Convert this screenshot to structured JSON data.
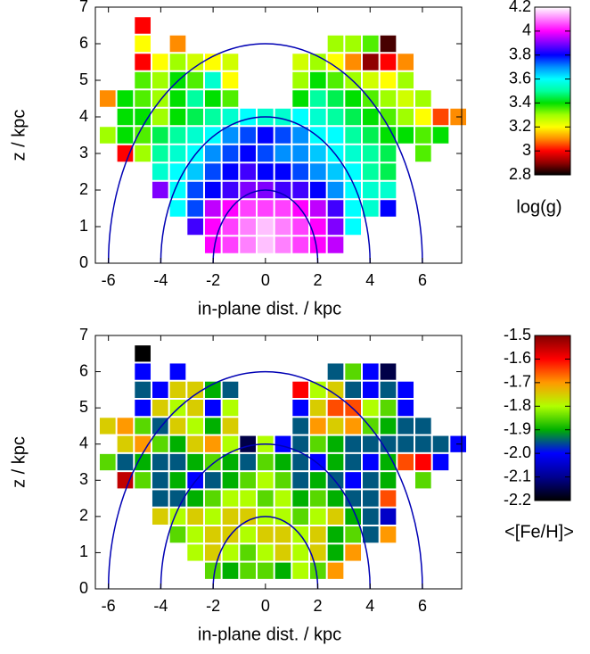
{
  "chart_data": [
    {
      "type": "heatmap",
      "xlabel": "in-plane dist. / kpc",
      "ylabel": "z / kpc",
      "x": [
        -6.03,
        -5.36,
        -4.69,
        -4.02,
        -3.35,
        -2.68,
        -2.01,
        -1.34,
        -0.67,
        0,
        0.67,
        1.34,
        2.01,
        2.68,
        3.35,
        4.02,
        4.69,
        5.36,
        6.03,
        6.7,
        7.37
      ],
      "y": [
        0.5,
        1,
        1.5,
        2,
        2.5,
        3,
        3.5,
        4,
        4.5,
        5,
        5.5,
        6,
        6.5
      ],
      "values": [
        [
          null,
          null,
          null,
          null,
          null,
          null,
          4.0,
          4.05,
          4.1,
          4.15,
          4.1,
          4.05,
          4.0,
          3.95,
          null,
          null,
          null,
          null,
          null,
          null,
          null
        ],
        [
          null,
          null,
          null,
          null,
          null,
          3.85,
          4.0,
          4.05,
          4.1,
          4.15,
          4.1,
          4.05,
          4.0,
          3.9,
          3.6,
          null,
          null,
          null,
          null,
          null,
          null
        ],
        [
          null,
          null,
          null,
          null,
          3.6,
          3.75,
          3.95,
          4.0,
          4.05,
          4.05,
          4.05,
          4.0,
          3.95,
          3.85,
          3.6,
          3.55,
          3.8,
          null,
          null,
          null,
          null
        ],
        [
          null,
          null,
          null,
          3.9,
          3.6,
          3.75,
          3.8,
          3.85,
          3.9,
          3.9,
          3.85,
          3.85,
          3.8,
          3.7,
          3.6,
          3.55,
          3.55,
          null,
          null,
          null,
          null
        ],
        [
          null,
          null,
          null,
          3.55,
          3.6,
          3.65,
          3.75,
          3.8,
          3.85,
          3.8,
          3.8,
          3.75,
          3.7,
          3.65,
          3.6,
          3.5,
          3.45,
          null,
          null,
          null,
          null
        ],
        [
          null,
          3.0,
          3.3,
          3.5,
          3.55,
          3.6,
          3.7,
          3.75,
          3.8,
          3.75,
          3.7,
          3.7,
          3.65,
          3.6,
          3.55,
          3.5,
          3.45,
          null,
          3.35,
          null,
          null
        ],
        [
          3.3,
          3.4,
          3.35,
          3.45,
          3.5,
          3.55,
          3.6,
          3.7,
          3.75,
          3.8,
          3.75,
          3.7,
          3.6,
          3.6,
          3.5,
          3.45,
          3.4,
          3.4,
          3.35,
          3.4,
          null
        ],
        [
          null,
          3.4,
          3.4,
          3.3,
          3.4,
          3.45,
          3.5,
          3.55,
          3.6,
          3.55,
          3.55,
          3.6,
          3.55,
          3.5,
          3.45,
          3.4,
          3.35,
          3.3,
          3.2,
          3.05,
          3.1
        ],
        [
          3.1,
          3.4,
          3.35,
          3.3,
          3.4,
          3.5,
          3.4,
          3.35,
          null,
          null,
          null,
          3.4,
          3.5,
          3.45,
          3.4,
          3.35,
          3.3,
          3.25,
          3.3,
          null,
          null
        ],
        [
          null,
          null,
          3.35,
          3.3,
          3.4,
          3.35,
          3.55,
          3.2,
          null,
          null,
          null,
          3.3,
          3.4,
          3.35,
          3.3,
          3.25,
          3.2,
          3.3,
          null,
          null,
          null
        ],
        [
          null,
          null,
          3.0,
          3.2,
          3.3,
          3.25,
          3.2,
          3.25,
          null,
          null,
          null,
          3.25,
          3.3,
          3.2,
          3.1,
          2.9,
          3.0,
          3.1,
          null,
          null,
          null
        ],
        [
          null,
          null,
          3.2,
          null,
          3.1,
          null,
          null,
          null,
          null,
          null,
          null,
          null,
          null,
          3.3,
          3.3,
          3.35,
          2.85,
          null,
          null,
          null,
          null
        ],
        [
          null,
          null,
          3.0,
          null,
          null,
          null,
          null,
          null,
          null,
          null,
          null,
          null,
          null,
          null,
          null,
          null,
          null,
          null,
          null,
          null,
          null
        ]
      ],
      "xlim": [
        -6.5,
        7.5
      ],
      "ylim": [
        0,
        7
      ],
      "xticks": [
        -6,
        -4,
        -2,
        0,
        2,
        4,
        6
      ],
      "yticks": [
        0,
        1,
        2,
        3,
        4,
        5,
        6,
        7
      ],
      "circles": {
        "radii": [
          2,
          4,
          6
        ],
        "color": "#0000b4"
      },
      "colorbar": {
        "label": "log(g)",
        "lim": [
          2.8,
          4.2
        ],
        "ticks": [
          2.8,
          3,
          3.2,
          3.4,
          3.6,
          3.8,
          4,
          4.2
        ],
        "colors": [
          "#000000",
          "#900000",
          "#ff0000",
          "#ff8c00",
          "#ffff00",
          "#a0ff00",
          "#00e000",
          "#00ffa0",
          "#00ffff",
          "#0090ff",
          "#0000ff",
          "#8000ff",
          "#ff00ff",
          "#ff80ff",
          "#ffffff"
        ]
      }
    },
    {
      "type": "heatmap",
      "xlabel": "in-plane dist. / kpc",
      "ylabel": "z / kpc",
      "x": [
        -6.03,
        -5.36,
        -4.69,
        -4.02,
        -3.35,
        -2.68,
        -2.01,
        -1.34,
        -0.67,
        0,
        0.67,
        1.34,
        2.01,
        2.68,
        3.35,
        4.02,
        4.69,
        5.36,
        6.03,
        6.7,
        7.37
      ],
      "y": [
        0.5,
        1,
        1.5,
        2,
        2.5,
        3,
        3.5,
        4,
        4.5,
        5,
        5.5,
        6,
        6.5
      ],
      "values": [
        [
          null,
          null,
          null,
          null,
          null,
          null,
          -1.85,
          -1.9,
          -1.85,
          -1.85,
          -1.9,
          -1.8,
          -1.85,
          -1.7,
          null,
          null,
          null,
          null,
          null,
          null,
          null
        ],
        [
          null,
          null,
          null,
          null,
          null,
          -1.8,
          -1.75,
          -1.8,
          -1.85,
          -1.8,
          -1.75,
          -1.8,
          -1.75,
          -1.9,
          -1.7,
          null,
          null,
          null,
          null,
          null,
          null
        ],
        [
          null,
          null,
          null,
          null,
          -1.85,
          -1.8,
          -1.75,
          -1.75,
          -1.8,
          -1.75,
          -1.75,
          -1.8,
          -1.75,
          -1.9,
          -1.85,
          -1.95,
          -1.7,
          null,
          null,
          null,
          null
        ],
        [
          null,
          null,
          null,
          -1.75,
          -1.8,
          -1.75,
          -1.8,
          -1.75,
          -1.75,
          -1.8,
          -1.8,
          -1.85,
          -1.8,
          -1.75,
          -1.9,
          -1.95,
          -2.05,
          null,
          null,
          null,
          null
        ],
        [
          null,
          null,
          null,
          -1.95,
          -1.95,
          -1.9,
          -1.85,
          -1.8,
          -1.8,
          -1.85,
          -1.8,
          -1.9,
          -1.85,
          -1.9,
          -1.95,
          -1.95,
          -1.65,
          null,
          null,
          null,
          null
        ],
        [
          null,
          -1.55,
          -1.85,
          -1.95,
          -1.9,
          -2.0,
          -1.95,
          -1.9,
          -1.85,
          -1.8,
          -1.85,
          -1.95,
          -1.9,
          -1.95,
          -2.0,
          -1.95,
          -1.9,
          null,
          -1.85,
          null,
          null
        ],
        [
          -1.85,
          -1.95,
          -1.9,
          -1.95,
          -1.95,
          -1.9,
          -1.85,
          -1.9,
          -1.95,
          -1.85,
          -1.9,
          -1.95,
          -2.0,
          -1.9,
          -1.95,
          -2.0,
          -1.9,
          -1.65,
          -1.6,
          -2.0,
          null
        ],
        [
          null,
          -1.75,
          -1.7,
          -1.85,
          -1.9,
          -1.75,
          -1.7,
          -1.8,
          -2.15,
          -1.8,
          -2.0,
          -1.95,
          -1.85,
          -1.9,
          -1.95,
          -1.95,
          -1.95,
          -1.95,
          -1.95,
          -1.95,
          -2.0
        ],
        [
          -1.75,
          -1.7,
          -1.85,
          -1.95,
          -1.75,
          -1.8,
          -1.9,
          -1.75,
          null,
          null,
          null,
          -1.95,
          -1.7,
          -1.75,
          -1.7,
          -1.85,
          -1.9,
          -1.95,
          -1.95,
          null,
          null
        ],
        [
          null,
          null,
          -2.0,
          -1.75,
          -1.8,
          -1.75,
          -2.0,
          -1.8,
          null,
          null,
          null,
          -2.0,
          -1.75,
          -1.65,
          -1.65,
          -1.8,
          -1.85,
          -2.0,
          null,
          null,
          null
        ],
        [
          null,
          null,
          -1.95,
          -2.0,
          -1.75,
          -1.75,
          -1.9,
          -1.95,
          null,
          null,
          null,
          -1.6,
          -1.8,
          -1.75,
          -1.95,
          -2.0,
          -1.95,
          -2.0,
          null,
          null,
          null
        ],
        [
          null,
          null,
          -2.0,
          null,
          -2.0,
          null,
          null,
          null,
          null,
          null,
          null,
          null,
          null,
          -1.95,
          -1.85,
          -2.0,
          -2.15,
          null,
          null,
          null,
          null
        ],
        [
          null,
          null,
          -2.2,
          null,
          null,
          null,
          null,
          null,
          null,
          null,
          null,
          null,
          null,
          null,
          null,
          null,
          null,
          null,
          null,
          null,
          null
        ]
      ],
      "xlim": [
        -6.5,
        7.5
      ],
      "ylim": [
        0,
        7
      ],
      "xticks": [
        -6,
        -4,
        -2,
        0,
        2,
        4,
        6
      ],
      "yticks": [
        0,
        1,
        2,
        3,
        4,
        5,
        6,
        7
      ],
      "circles": {
        "radii": [
          2,
          4,
          6
        ],
        "color": "#0000b4"
      },
      "colorbar": {
        "label": "<[Fe/H]>",
        "lim": [
          -2.2,
          -1.5
        ],
        "ticks": [
          -2.2,
          -2.1,
          {
            "value": -2,
            "label": "-2.0"
          },
          -1.9,
          -1.8,
          -1.7,
          -1.6,
          -1.5
        ],
        "colors": [
          "#000000",
          "#000090",
          "#0000ff",
          "#00b000",
          "#b0ff00",
          "#ff9900",
          "#ff0000",
          "#800000"
        ]
      }
    }
  ]
}
